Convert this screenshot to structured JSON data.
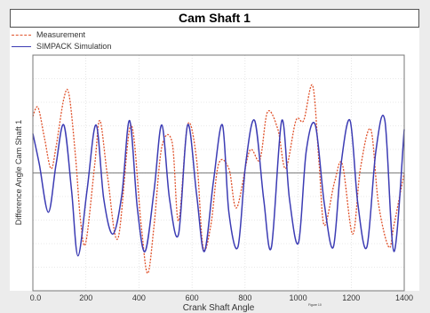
{
  "chart_data": {
    "type": "line",
    "title": "Cam Shaft 1",
    "xlabel": "Crank Shaft Angle",
    "ylabel": "Difference Angle Cam Shaft 1",
    "xlim": [
      0,
      1440
    ],
    "ylim": [
      -1.35,
      1.35
    ],
    "x_ticks": [
      "0.0",
      "200",
      "400",
      "600",
      "800",
      "1000",
      "1200",
      "1400"
    ],
    "grid": true,
    "legend_position": "top-left",
    "series": [
      {
        "name": "Measurement",
        "color": "#e0522b",
        "style": "dashed",
        "x": [
          0,
          20,
          45,
          70,
          90,
          120,
          140,
          165,
          185,
          205,
          240,
          260,
          290,
          330,
          380,
          420,
          445,
          470,
          500,
          540,
          565,
          600,
          635,
          660,
          690,
          720,
          760,
          790,
          840,
          880,
          910,
          950,
          980,
          1020,
          1050,
          1085,
          1110,
          1130,
          1170,
          1200,
          1240,
          1270,
          1310,
          1340,
          1380,
          1400,
          1430,
          1440
        ],
        "y": [
          0.65,
          0.75,
          0.4,
          0.05,
          0.3,
          0.85,
          0.9,
          0.2,
          -0.55,
          -0.8,
          0.1,
          0.6,
          -0.05,
          -0.75,
          0.55,
          -0.6,
          -1.15,
          -0.6,
          0.3,
          0.35,
          -0.55,
          0.55,
          0.15,
          -0.85,
          -0.6,
          0.1,
          0.05,
          -0.4,
          0.25,
          0.15,
          0.7,
          0.5,
          0.05,
          0.6,
          0.6,
          1.0,
          0.1,
          -0.6,
          -0.1,
          0.1,
          -0.7,
          0.05,
          0.5,
          -0.35,
          -0.85,
          -0.6,
          -0.15,
          0.0
        ]
      },
      {
        "name": "SIMPACK Simulation",
        "color": "#3c3cb4",
        "style": "solid",
        "x": [
          0,
          25,
          60,
          90,
          120,
          150,
          175,
          210,
          245,
          275,
          310,
          345,
          375,
          405,
          435,
          470,
          500,
          530,
          565,
          600,
          635,
          665,
          700,
          735,
          760,
          795,
          825,
          860,
          895,
          925,
          965,
          995,
          1030,
          1060,
          1095,
          1130,
          1165,
          1195,
          1230,
          1260,
          1295,
          1330,
          1365,
          1400,
          1440
        ],
        "y": [
          0.45,
          0.1,
          -0.45,
          0.1,
          0.55,
          -0.2,
          -0.95,
          -0.2,
          0.55,
          -0.3,
          -0.7,
          -0.25,
          0.6,
          -0.4,
          -0.9,
          -0.2,
          0.55,
          -0.3,
          -0.7,
          0.55,
          -0.25,
          -0.9,
          -0.1,
          0.55,
          -0.45,
          -0.85,
          0.1,
          0.6,
          -0.3,
          -0.85,
          0.6,
          -0.3,
          -0.8,
          0.25,
          0.55,
          -0.35,
          -0.85,
          0.1,
          0.6,
          -0.35,
          -0.85,
          0.25,
          0.6,
          -0.9,
          0.5
        ]
      }
    ]
  },
  "footnote": "Figure 10"
}
